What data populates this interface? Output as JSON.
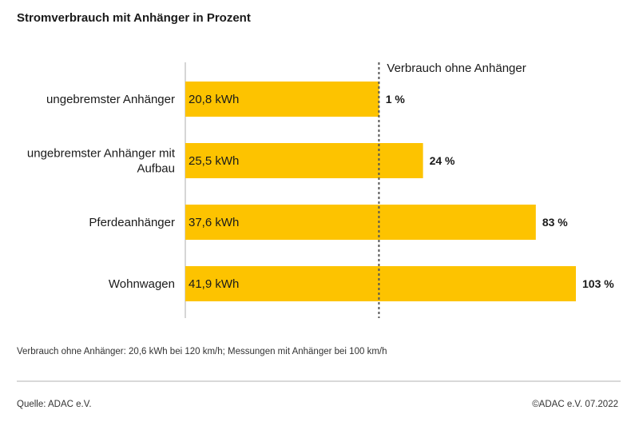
{
  "colors": {
    "bar": "#FDC300",
    "text": "#1a1a1a",
    "axis": "#d6d6d6",
    "reference": "#555555"
  },
  "chart_data": {
    "type": "bar",
    "orientation": "horizontal",
    "title": "Stromverbrauch mit Anhänger in Prozent",
    "reference_label": "Verbrauch ohne Anhänger",
    "categories": [
      [
        "ungebremster Anhänger"
      ],
      [
        "ungebremster Anhänger mit",
        "Aufbau"
      ],
      [
        "Pferdeanhänger"
      ],
      [
        "Wohnwagen"
      ]
    ],
    "values_kwh": [
      20.8,
      25.5,
      37.6,
      41.9
    ],
    "value_labels": [
      "20,8 kWh",
      "25,5 kWh",
      "37,6 kWh",
      "41,9 kWh"
    ],
    "percent_labels": [
      "1 %",
      "24 %",
      "83 %",
      "103 %"
    ],
    "reference_value_kwh": 20.6,
    "xlim": [
      0,
      41.9
    ]
  },
  "footer": {
    "note": "Verbrauch ohne Anhänger: 20,6 kWh bei 120 km/h; Messungen mit Anhänger bei 100 km/h",
    "source": "Quelle: ADAC e.V.",
    "copyright": "©ADAC e.V.  07.2022"
  }
}
